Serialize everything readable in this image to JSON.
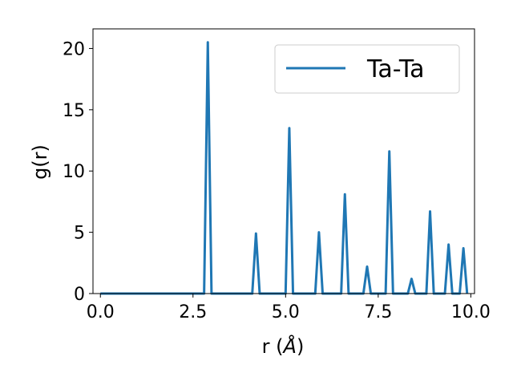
{
  "chart_data": {
    "type": "line",
    "xlabel_prefix": "r (",
    "xlabel_unit": "Å",
    "xlabel_suffix": ")",
    "ylabel": "g(r)",
    "xlim": [
      -0.2,
      10.1
    ],
    "ylim": [
      0,
      21.6
    ],
    "xticks": [
      0.0,
      2.5,
      5.0,
      7.5,
      10.0
    ],
    "xtick_labels": [
      "0.0",
      "2.5",
      "5.0",
      "7.5",
      "10.0"
    ],
    "yticks": [
      0,
      5,
      10,
      15,
      20
    ],
    "ytick_labels": [
      "0",
      "5",
      "10",
      "15",
      "20"
    ],
    "grid": false,
    "legend_position": "top-right",
    "series": [
      {
        "name": "Ta-Ta",
        "color": "#1f77b4",
        "points": [
          [
            0.0,
            0
          ],
          [
            2.8,
            0
          ],
          [
            2.9,
            20.5
          ],
          [
            3.0,
            0
          ],
          [
            4.1,
            0
          ],
          [
            4.2,
            4.9
          ],
          [
            4.3,
            0
          ],
          [
            5.0,
            0
          ],
          [
            5.1,
            13.5
          ],
          [
            5.2,
            0
          ],
          [
            5.8,
            0
          ],
          [
            5.9,
            5.0
          ],
          [
            6.0,
            0
          ],
          [
            6.5,
            0
          ],
          [
            6.6,
            8.1
          ],
          [
            6.7,
            0
          ],
          [
            7.1,
            0
          ],
          [
            7.2,
            2.2
          ],
          [
            7.3,
            0
          ],
          [
            7.7,
            0
          ],
          [
            7.8,
            11.6
          ],
          [
            7.9,
            0
          ],
          [
            8.3,
            0
          ],
          [
            8.4,
            1.2
          ],
          [
            8.5,
            0
          ],
          [
            8.8,
            0
          ],
          [
            8.9,
            6.7
          ],
          [
            9.0,
            0
          ],
          [
            9.3,
            0
          ],
          [
            9.4,
            4.0
          ],
          [
            9.5,
            0
          ],
          [
            9.7,
            0
          ],
          [
            9.8,
            3.7
          ],
          [
            9.9,
            0
          ]
        ]
      }
    ]
  }
}
